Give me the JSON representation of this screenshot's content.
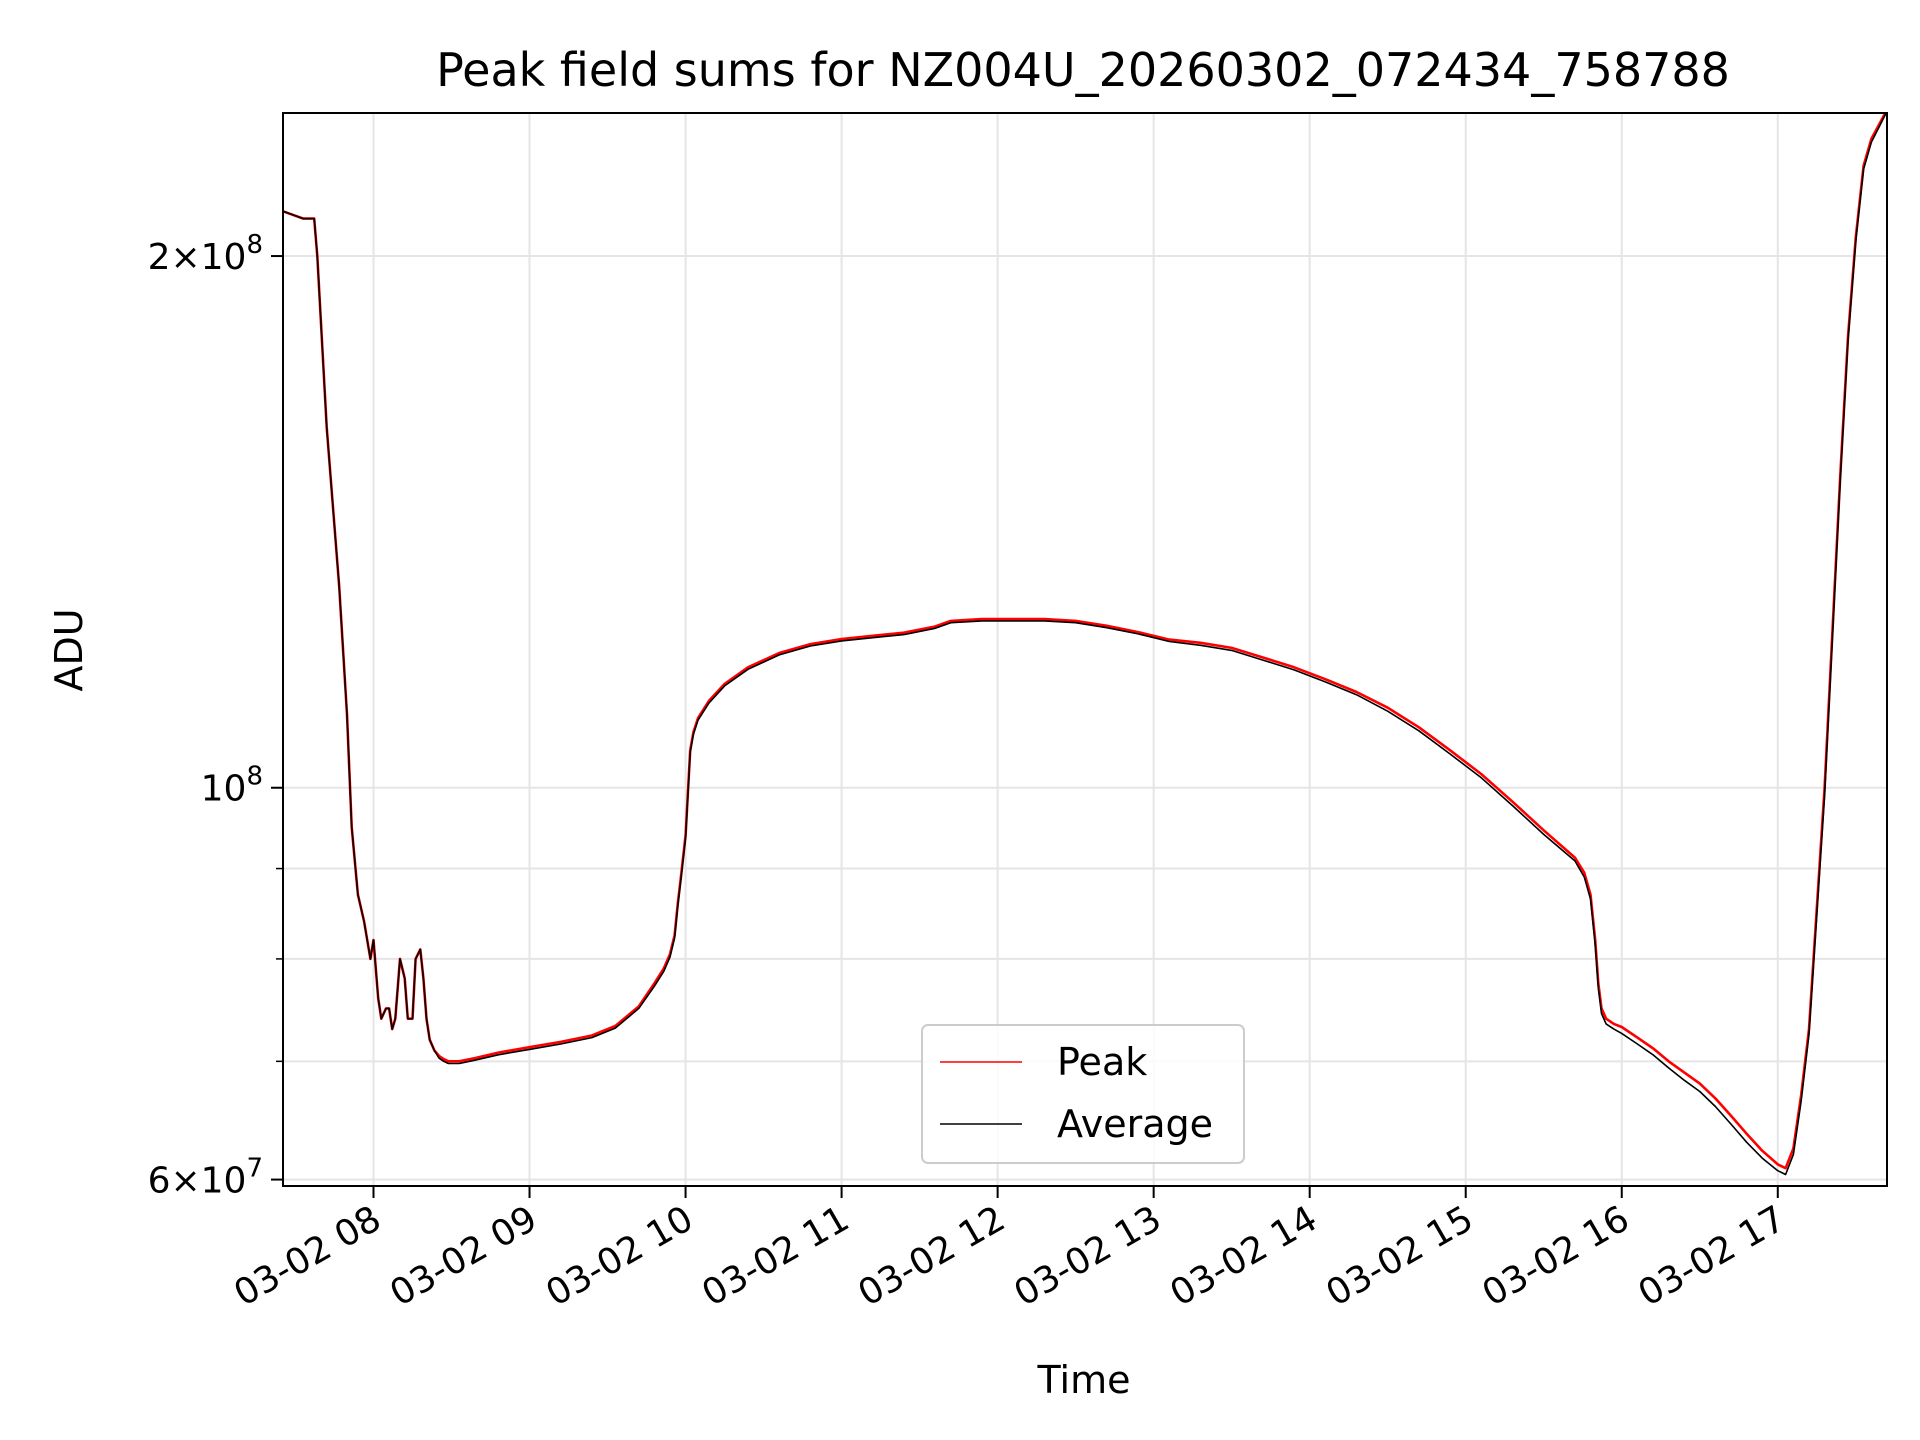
{
  "chart_data": {
    "type": "line",
    "title": "Peak field sums for NZ004U_20260302_072434_758788",
    "xlabel": "Time",
    "ylabel": "ADU",
    "yscale": "log",
    "ylim": [
      59500000,
      241000000
    ],
    "xlim_hours": [
      7.42,
      17.7
    ],
    "grid": true,
    "legend_position": "lower-center",
    "x_ticks": [
      {
        "label": "03-02 08",
        "hour": 8
      },
      {
        "label": "03-02 09",
        "hour": 9
      },
      {
        "label": "03-02 10",
        "hour": 10
      },
      {
        "label": "03-02 11",
        "hour": 11
      },
      {
        "label": "03-02 12",
        "hour": 12
      },
      {
        "label": "03-02 13",
        "hour": 13
      },
      {
        "label": "03-02 14",
        "hour": 14
      },
      {
        "label": "03-02 15",
        "hour": 15
      },
      {
        "label": "03-02 16",
        "hour": 16
      },
      {
        "label": "03-02 17",
        "hour": 17
      }
    ],
    "y_major_ticks": [
      {
        "mant": "6",
        "exp": "7",
        "value": 60000000
      },
      {
        "mant": "",
        "exp": "8",
        "value": 100000000
      },
      {
        "mant": "2",
        "exp": "8",
        "value": 200000000
      }
    ],
    "y_minor_ticks": [
      70000000,
      80000000,
      90000000
    ],
    "series": [
      {
        "name": "Peak",
        "color": "#ff0000",
        "x_hours": [
          7.42,
          7.55,
          7.62,
          7.64,
          7.7,
          7.78,
          7.83,
          7.86,
          7.9,
          7.94,
          7.98,
          8.0,
          8.03,
          8.05,
          8.08,
          8.1,
          8.12,
          8.14,
          8.17,
          8.2,
          8.22,
          8.25,
          8.27,
          8.3,
          8.32,
          8.34,
          8.36,
          8.39,
          8.42,
          8.45,
          8.48,
          8.55,
          8.65,
          8.8,
          9.0,
          9.2,
          9.4,
          9.55,
          9.7,
          9.8,
          9.86,
          9.9,
          9.93,
          9.95,
          9.97,
          10.0,
          10.03,
          10.05,
          10.08,
          10.15,
          10.25,
          10.4,
          10.6,
          10.8,
          11.0,
          11.2,
          11.4,
          11.6,
          11.7,
          11.9,
          12.1,
          12.3,
          12.5,
          12.7,
          12.9,
          13.1,
          13.3,
          13.5,
          13.7,
          13.9,
          14.1,
          14.3,
          14.5,
          14.7,
          14.9,
          15.1,
          15.3,
          15.5,
          15.7,
          15.76,
          15.8,
          15.83,
          15.85,
          15.87,
          15.9,
          15.95,
          16.0,
          16.1,
          16.2,
          16.3,
          16.4,
          16.5,
          16.6,
          16.7,
          16.8,
          16.9,
          17.0,
          17.05,
          17.1,
          17.15,
          17.2,
          17.3,
          17.4,
          17.45,
          17.5,
          17.55,
          17.6,
          17.7
        ],
        "values": [
          212000000,
          210000000,
          210000000,
          200000000,
          160000000,
          130000000,
          110000000,
          95000000,
          87000000,
          84000000,
          80000000,
          82000000,
          76000000,
          74000000,
          75000000,
          75000000,
          73000000,
          74000000,
          80000000,
          78000000,
          74000000,
          74000000,
          80000000,
          81000000,
          78000000,
          74000000,
          72000000,
          71000000,
          70500000,
          70200000,
          70000000,
          70000000,
          70300000,
          70800000,
          71300000,
          71800000,
          72400000,
          73300000,
          75200000,
          77500000,
          79000000,
          80500000,
          82500000,
          86000000,
          89000000,
          94000000,
          105000000,
          107500000,
          109500000,
          112000000,
          114500000,
          117000000,
          119200000,
          120600000,
          121400000,
          121900000,
          122400000,
          123400000,
          124300000,
          124600000,
          124600000,
          124600000,
          124300000,
          123500000,
          122500000,
          121300000,
          120800000,
          120000000,
          118500000,
          117000000,
          115200000,
          113300000,
          111000000,
          108200000,
          105000000,
          101800000,
          98200000,
          94600000,
          91300000,
          89500000,
          87000000,
          82000000,
          77500000,
          75000000,
          74000000,
          73500000,
          73200000,
          72200000,
          71200000,
          70000000,
          69000000,
          68000000,
          66700000,
          65200000,
          63700000,
          62300000,
          61200000,
          60900000,
          62500000,
          67000000,
          73000000,
          100000000,
          150000000,
          180000000,
          205000000,
          225000000,
          233000000,
          242000000
        ]
      },
      {
        "name": "Average",
        "color": "#000000",
        "x_hours": [
          7.42,
          7.55,
          7.62,
          7.64,
          7.7,
          7.78,
          7.83,
          7.86,
          7.9,
          7.94,
          7.98,
          8.0,
          8.03,
          8.05,
          8.08,
          8.1,
          8.12,
          8.14,
          8.17,
          8.2,
          8.22,
          8.25,
          8.27,
          8.3,
          8.32,
          8.34,
          8.36,
          8.39,
          8.42,
          8.45,
          8.48,
          8.55,
          8.65,
          8.8,
          9.0,
          9.2,
          9.4,
          9.55,
          9.7,
          9.8,
          9.86,
          9.9,
          9.93,
          9.95,
          9.97,
          10.0,
          10.03,
          10.05,
          10.08,
          10.15,
          10.25,
          10.4,
          10.6,
          10.8,
          11.0,
          11.2,
          11.4,
          11.6,
          11.7,
          11.9,
          12.1,
          12.3,
          12.5,
          12.7,
          12.9,
          13.1,
          13.3,
          13.5,
          13.7,
          13.9,
          14.1,
          14.3,
          14.5,
          14.7,
          14.9,
          15.1,
          15.3,
          15.5,
          15.7,
          15.76,
          15.8,
          15.83,
          15.85,
          15.87,
          15.9,
          15.95,
          16.0,
          16.1,
          16.2,
          16.3,
          16.4,
          16.5,
          16.6,
          16.7,
          16.8,
          16.9,
          17.0,
          17.05,
          17.1,
          17.15,
          17.2,
          17.3,
          17.4,
          17.45,
          17.5,
          17.55,
          17.6,
          17.7
        ],
        "values": [
          212000000,
          210000000,
          210000000,
          200000000,
          160000000,
          130000000,
          110000000,
          95000000,
          87000000,
          84000000,
          80000000,
          82000000,
          76000000,
          74000000,
          75000000,
          75000000,
          73000000,
          74000000,
          80000000,
          78000000,
          74000000,
          74000000,
          80000000,
          81000000,
          78000000,
          74000000,
          72000000,
          71000000,
          70300000,
          70000000,
          69800000,
          69800000,
          70100000,
          70600000,
          71100000,
          71600000,
          72200000,
          73100000,
          75000000,
          77200000,
          78700000,
          80200000,
          82200000,
          85700000,
          88700000,
          93700000,
          104700000,
          107200000,
          109200000,
          111700000,
          114200000,
          116700000,
          118900000,
          120300000,
          121100000,
          121600000,
          122100000,
          123100000,
          124000000,
          124300000,
          124300000,
          124300000,
          124000000,
          123200000,
          122200000,
          121000000,
          120400000,
          119600000,
          118100000,
          116600000,
          114800000,
          112900000,
          110500000,
          107700000,
          104500000,
          101300000,
          97700000,
          94100000,
          90900000,
          89000000,
          86500000,
          81500000,
          77000000,
          74500000,
          73500000,
          73000000,
          72600000,
          71600000,
          70600000,
          69400000,
          68300000,
          67300000,
          66000000,
          64500000,
          63000000,
          61700000,
          60700000,
          60400000,
          62000000,
          66500000,
          72500000,
          99000000,
          149000000,
          179000000,
          204000000,
          224000000,
          232000000,
          241500000
        ]
      }
    ]
  }
}
